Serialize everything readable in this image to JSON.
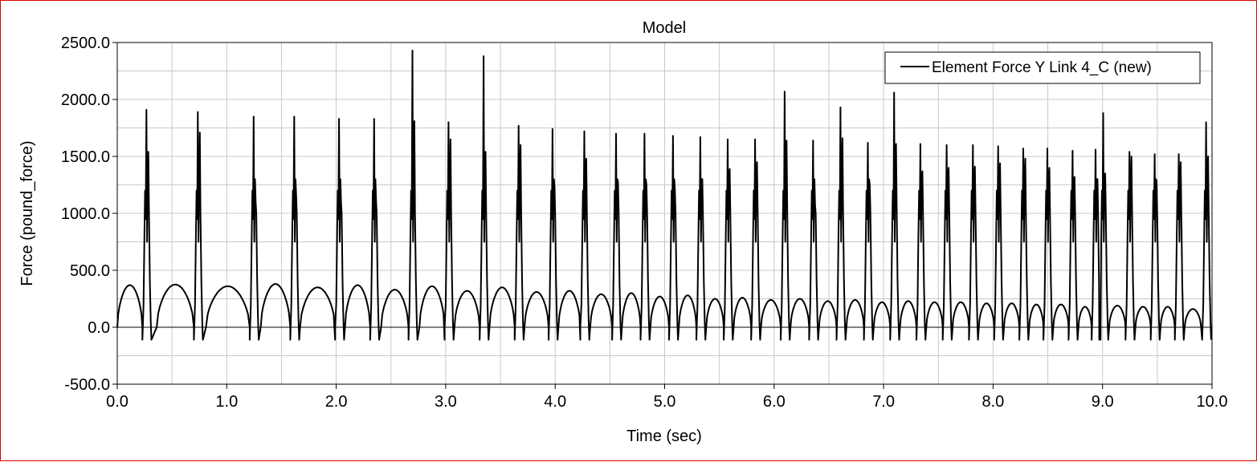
{
  "chart_data": {
    "type": "line",
    "title": "Model",
    "xlabel": "Time (sec)",
    "ylabel": "Force (pound_force)",
    "xlim": [
      0.0,
      10.0
    ],
    "ylim": [
      -500.0,
      2500.0
    ],
    "x_ticks": [
      0.0,
      1.0,
      2.0,
      3.0,
      4.0,
      5.0,
      6.0,
      7.0,
      8.0,
      9.0,
      10.0
    ],
    "x_tick_labels": [
      "0.0",
      "1.0",
      "2.0",
      "3.0",
      "4.0",
      "5.0",
      "6.0",
      "7.0",
      "8.0",
      "9.0",
      "10.0"
    ],
    "y_ticks": [
      -500.0,
      0.0,
      500.0,
      1000.0,
      1500.0,
      2000.0,
      2500.0
    ],
    "y_tick_labels": [
      "-500.0",
      "0.0",
      "500.0",
      "1000.0",
      "1500.0",
      "2000.0",
      "2500.0"
    ],
    "grid": true,
    "legend_position": "top-right",
    "series": [
      {
        "name": "Element Force Y Link 4_C (new)",
        "color": "#000000",
        "impacts": [
          {
            "t": 0.27,
            "peak": 1910,
            "second": 1540
          },
          {
            "t": 0.74,
            "peak": 1890,
            "second": 1710
          },
          {
            "t": 1.25,
            "peak": 1850,
            "second": 1100
          },
          {
            "t": 1.62,
            "peak": 1850,
            "second": 1170
          },
          {
            "t": 2.03,
            "peak": 1830,
            "second": 1100
          },
          {
            "t": 2.35,
            "peak": 1830,
            "second": 1120
          },
          {
            "t": 2.7,
            "peak": 2430,
            "second": 1810
          },
          {
            "t": 3.03,
            "peak": 1800,
            "second": 1650
          },
          {
            "t": 3.35,
            "peak": 2380,
            "second": 1540
          },
          {
            "t": 3.67,
            "peak": 1770,
            "second": 1600
          },
          {
            "t": 3.98,
            "peak": 1740,
            "second": 1230
          },
          {
            "t": 4.27,
            "peak": 1720,
            "second": 1480
          },
          {
            "t": 4.56,
            "peak": 1700,
            "second": 1280
          },
          {
            "t": 4.82,
            "peak": 1700,
            "second": 1250
          },
          {
            "t": 5.08,
            "peak": 1680,
            "second": 1200
          },
          {
            "t": 5.33,
            "peak": 1670,
            "second": 1300
          },
          {
            "t": 5.58,
            "peak": 1650,
            "second": 1390
          },
          {
            "t": 5.83,
            "peak": 1650,
            "second": 1450
          },
          {
            "t": 6.1,
            "peak": 2070,
            "second": 1640
          },
          {
            "t": 6.36,
            "peak": 1640,
            "second": 1070
          },
          {
            "t": 6.61,
            "peak": 1930,
            "second": 1660
          },
          {
            "t": 6.86,
            "peak": 1620,
            "second": 1250
          },
          {
            "t": 7.1,
            "peak": 2060,
            "second": 1610
          },
          {
            "t": 7.34,
            "peak": 1610,
            "second": 1370
          },
          {
            "t": 7.58,
            "peak": 1600,
            "second": 1400
          },
          {
            "t": 7.82,
            "peak": 1600,
            "second": 1410
          },
          {
            "t": 8.05,
            "peak": 1590,
            "second": 1440
          },
          {
            "t": 8.28,
            "peak": 1570,
            "second": 1480
          },
          {
            "t": 8.5,
            "peak": 1570,
            "second": 1400
          },
          {
            "t": 8.73,
            "peak": 1550,
            "second": 1320
          },
          {
            "t": 8.94,
            "peak": 1560,
            "second": 1300
          },
          {
            "t": 9.01,
            "peak": 1880,
            "second": 1350
          },
          {
            "t": 9.25,
            "peak": 1540,
            "second": 1500
          },
          {
            "t": 9.48,
            "peak": 1520,
            "second": 1280
          },
          {
            "t": 9.7,
            "peak": 1520,
            "second": 1450
          },
          {
            "t": 9.95,
            "peak": 1800,
            "second": 1500
          }
        ],
        "arches": [
          {
            "t0": 0.0,
            "t1": 0.23,
            "max": 370
          },
          {
            "t0": 0.36,
            "t1": 0.7,
            "max": 375
          },
          {
            "t0": 0.81,
            "t1": 1.21,
            "max": 360
          },
          {
            "t0": 1.31,
            "t1": 1.58,
            "max": 380
          },
          {
            "t0": 1.67,
            "t1": 1.99,
            "max": 350
          },
          {
            "t0": 2.08,
            "t1": 2.31,
            "max": 370
          },
          {
            "t0": 2.41,
            "t1": 2.66,
            "max": 330
          },
          {
            "t0": 2.76,
            "t1": 2.99,
            "max": 360
          },
          {
            "t0": 3.08,
            "t1": 3.31,
            "max": 320
          },
          {
            "t0": 3.4,
            "t1": 3.63,
            "max": 350
          },
          {
            "t0": 3.72,
            "t1": 3.94,
            "max": 310
          },
          {
            "t0": 4.03,
            "t1": 4.23,
            "max": 320
          },
          {
            "t0": 4.32,
            "t1": 4.52,
            "max": 290
          },
          {
            "t0": 4.61,
            "t1": 4.78,
            "max": 300
          },
          {
            "t0": 4.87,
            "t1": 5.04,
            "max": 270
          },
          {
            "t0": 5.13,
            "t1": 5.29,
            "max": 280
          },
          {
            "t0": 5.38,
            "t1": 5.54,
            "max": 250
          },
          {
            "t0": 5.63,
            "t1": 5.79,
            "max": 260
          },
          {
            "t0": 5.88,
            "t1": 6.06,
            "max": 240
          },
          {
            "t0": 6.15,
            "t1": 6.32,
            "max": 250
          },
          {
            "t0": 6.41,
            "t1": 6.57,
            "max": 230
          },
          {
            "t0": 6.66,
            "t1": 6.82,
            "max": 240
          },
          {
            "t0": 6.91,
            "t1": 7.06,
            "max": 220
          },
          {
            "t0": 7.15,
            "t1": 7.3,
            "max": 230
          },
          {
            "t0": 7.39,
            "t1": 7.54,
            "max": 220
          },
          {
            "t0": 7.63,
            "t1": 7.78,
            "max": 220
          },
          {
            "t0": 7.87,
            "t1": 8.01,
            "max": 210
          },
          {
            "t0": 8.1,
            "t1": 8.24,
            "max": 210
          },
          {
            "t0": 8.33,
            "t1": 8.46,
            "max": 200
          },
          {
            "t0": 8.55,
            "t1": 8.69,
            "max": 200
          },
          {
            "t0": 8.78,
            "t1": 8.9,
            "max": 180
          },
          {
            "t0": 9.06,
            "t1": 9.21,
            "max": 190
          },
          {
            "t0": 9.3,
            "t1": 9.44,
            "max": 180
          },
          {
            "t0": 9.53,
            "t1": 9.66,
            "max": 180
          },
          {
            "t0": 9.75,
            "t1": 9.9,
            "max": 160
          }
        ],
        "trough_min": -110
      }
    ]
  }
}
